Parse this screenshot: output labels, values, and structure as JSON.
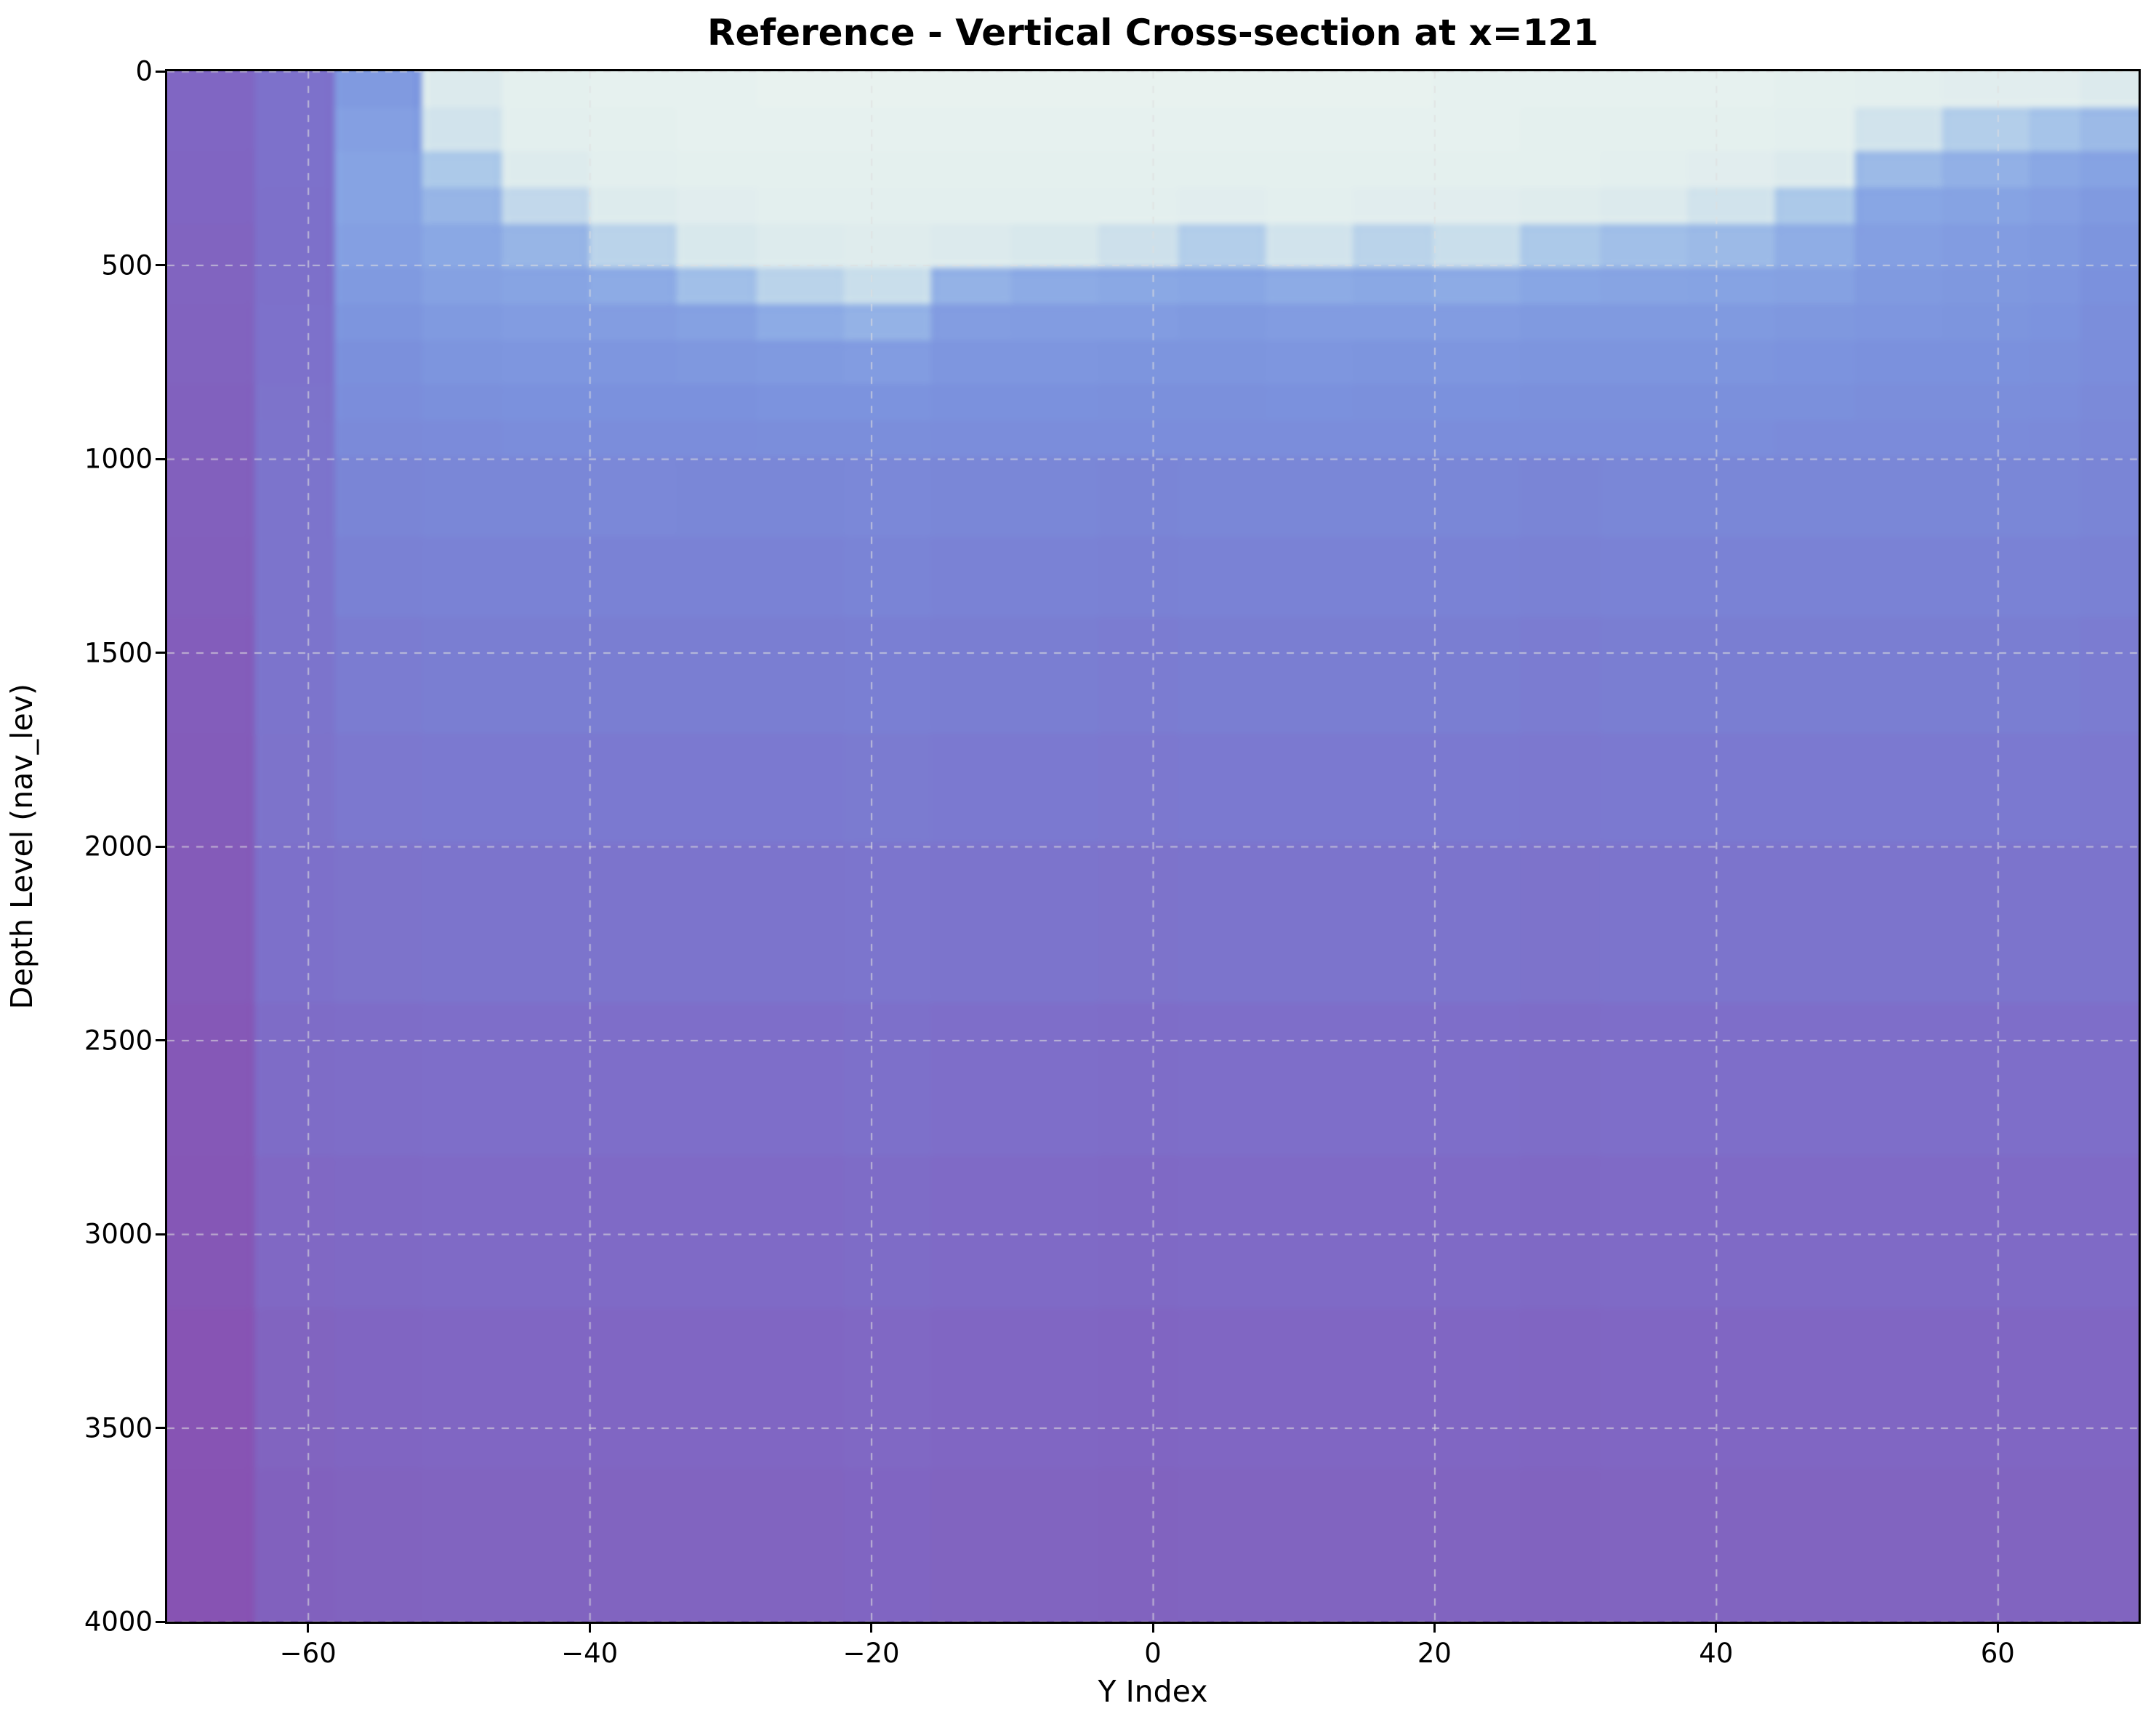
{
  "title": "Reference - Vertical Cross-section at x=121",
  "xlabel": "Y Index",
  "ylabel": "Depth Level (nav_lev)",
  "chart_data": {
    "type": "heatmap",
    "title": "Reference - Vertical Cross-section at x=121",
    "xlabel": "Y Index",
    "ylabel": "Depth Level (nav_lev)",
    "x_range": [
      -70,
      70
    ],
    "y_range": [
      0,
      4000
    ],
    "y_inverted": true,
    "grid": true,
    "grid_style": "dashed",
    "grid_color": "#dedede",
    "x_ticks": [
      -60,
      -40,
      -20,
      0,
      20,
      40,
      60
    ],
    "x_tick_labels": [
      "−60",
      "−40",
      "−20",
      "0",
      "20",
      "40",
      "60"
    ],
    "y_ticks": [
      0,
      500,
      1000,
      1500,
      2000,
      2500,
      3000,
      3500,
      4000
    ],
    "y_tick_labels": [
      "0",
      "500",
      "1000",
      "1500",
      "2000",
      "2500",
      "3000",
      "3500",
      "4000"
    ],
    "colormap": {
      "stops": [
        {
          "t": 0.0,
          "color": "#edf5f0"
        },
        {
          "t": 0.12,
          "color": "#d8e8ec"
        },
        {
          "t": 0.25,
          "color": "#a8c6e9"
        },
        {
          "t": 0.38,
          "color": "#88a6e4"
        },
        {
          "t": 0.5,
          "color": "#7b91dd"
        },
        {
          "t": 0.62,
          "color": "#7a7fd3"
        },
        {
          "t": 0.75,
          "color": "#7e6dc8"
        },
        {
          "t": 0.88,
          "color": "#835cba"
        },
        {
          "t": 1.0,
          "color": "#8a4cae"
        }
      ]
    },
    "x_edges": [
      -70,
      -64,
      -58,
      -52,
      -46,
      -40,
      -34,
      -28,
      -22,
      -16,
      -10,
      -4,
      2,
      8,
      14,
      20,
      26,
      32,
      38,
      44,
      50,
      56,
      62,
      66,
      70
    ],
    "depth_edges": [
      0,
      100,
      200,
      300,
      400,
      500,
      600,
      700,
      800,
      900,
      1000,
      1200,
      1400,
      1700,
      2000,
      2400,
      2800,
      3200,
      3600,
      4000
    ],
    "values": [
      [
        0.8,
        0.72,
        0.45,
        0.1,
        0.05,
        0.04,
        0.04,
        0.03,
        0.03,
        0.03,
        0.03,
        0.03,
        0.03,
        0.03,
        0.03,
        0.04,
        0.04,
        0.04,
        0.04,
        0.05,
        0.06,
        0.07,
        0.07,
        0.1
      ],
      [
        0.8,
        0.72,
        0.42,
        0.14,
        0.06,
        0.05,
        0.04,
        0.04,
        0.04,
        0.04,
        0.04,
        0.04,
        0.04,
        0.04,
        0.04,
        0.04,
        0.05,
        0.05,
        0.05,
        0.06,
        0.14,
        0.22,
        0.26,
        0.3
      ],
      [
        0.81,
        0.72,
        0.4,
        0.24,
        0.09,
        0.06,
        0.05,
        0.05,
        0.05,
        0.05,
        0.05,
        0.05,
        0.05,
        0.05,
        0.05,
        0.05,
        0.05,
        0.06,
        0.07,
        0.1,
        0.3,
        0.34,
        0.37,
        0.4
      ],
      [
        0.81,
        0.73,
        0.4,
        0.32,
        0.18,
        0.09,
        0.07,
        0.06,
        0.06,
        0.06,
        0.06,
        0.06,
        0.07,
        0.06,
        0.07,
        0.07,
        0.08,
        0.1,
        0.14,
        0.24,
        0.38,
        0.4,
        0.42,
        0.45
      ],
      [
        0.82,
        0.73,
        0.42,
        0.37,
        0.32,
        0.2,
        0.12,
        0.09,
        0.08,
        0.1,
        0.12,
        0.15,
        0.22,
        0.14,
        0.2,
        0.16,
        0.24,
        0.28,
        0.3,
        0.35,
        0.42,
        0.44,
        0.45,
        0.48
      ],
      [
        0.82,
        0.73,
        0.45,
        0.41,
        0.39,
        0.36,
        0.28,
        0.2,
        0.16,
        0.33,
        0.36,
        0.37,
        0.38,
        0.36,
        0.37,
        0.36,
        0.38,
        0.39,
        0.4,
        0.41,
        0.45,
        0.46,
        0.47,
        0.5
      ],
      [
        0.83,
        0.72,
        0.48,
        0.45,
        0.44,
        0.43,
        0.41,
        0.36,
        0.33,
        0.43,
        0.44,
        0.44,
        0.45,
        0.44,
        0.44,
        0.44,
        0.45,
        0.45,
        0.45,
        0.46,
        0.47,
        0.48,
        0.49,
        0.52
      ],
      [
        0.83,
        0.72,
        0.51,
        0.48,
        0.47,
        0.47,
        0.46,
        0.45,
        0.44,
        0.47,
        0.47,
        0.48,
        0.48,
        0.47,
        0.48,
        0.47,
        0.48,
        0.48,
        0.48,
        0.49,
        0.5,
        0.5,
        0.51,
        0.53
      ],
      [
        0.84,
        0.71,
        0.53,
        0.51,
        0.5,
        0.5,
        0.5,
        0.49,
        0.49,
        0.5,
        0.5,
        0.51,
        0.51,
        0.5,
        0.51,
        0.5,
        0.51,
        0.51,
        0.51,
        0.51,
        0.52,
        0.52,
        0.53,
        0.55
      ],
      [
        0.84,
        0.7,
        0.55,
        0.54,
        0.53,
        0.53,
        0.53,
        0.52,
        0.52,
        0.53,
        0.53,
        0.53,
        0.53,
        0.53,
        0.53,
        0.53,
        0.53,
        0.53,
        0.53,
        0.54,
        0.54,
        0.54,
        0.55,
        0.56
      ],
      [
        0.85,
        0.7,
        0.58,
        0.57,
        0.57,
        0.56,
        0.57,
        0.57,
        0.56,
        0.57,
        0.57,
        0.58,
        0.57,
        0.57,
        0.57,
        0.57,
        0.58,
        0.57,
        0.57,
        0.57,
        0.57,
        0.57,
        0.57,
        0.58
      ],
      [
        0.86,
        0.7,
        0.61,
        0.6,
        0.6,
        0.6,
        0.6,
        0.6,
        0.59,
        0.6,
        0.6,
        0.61,
        0.6,
        0.6,
        0.6,
        0.6,
        0.61,
        0.6,
        0.6,
        0.6,
        0.6,
        0.6,
        0.6,
        0.61
      ],
      [
        0.87,
        0.7,
        0.64,
        0.63,
        0.63,
        0.63,
        0.63,
        0.63,
        0.62,
        0.63,
        0.63,
        0.64,
        0.63,
        0.63,
        0.63,
        0.63,
        0.64,
        0.63,
        0.63,
        0.63,
        0.63,
        0.63,
        0.63,
        0.64
      ],
      [
        0.88,
        0.71,
        0.67,
        0.66,
        0.66,
        0.66,
        0.66,
        0.66,
        0.65,
        0.66,
        0.66,
        0.67,
        0.66,
        0.66,
        0.66,
        0.66,
        0.67,
        0.66,
        0.66,
        0.66,
        0.66,
        0.66,
        0.66,
        0.67
      ],
      [
        0.89,
        0.73,
        0.71,
        0.7,
        0.7,
        0.7,
        0.7,
        0.7,
        0.69,
        0.7,
        0.7,
        0.71,
        0.7,
        0.7,
        0.7,
        0.7,
        0.71,
        0.7,
        0.7,
        0.7,
        0.7,
        0.7,
        0.7,
        0.7
      ],
      [
        0.91,
        0.76,
        0.75,
        0.74,
        0.74,
        0.74,
        0.74,
        0.74,
        0.73,
        0.74,
        0.74,
        0.75,
        0.74,
        0.74,
        0.74,
        0.74,
        0.75,
        0.74,
        0.74,
        0.74,
        0.74,
        0.74,
        0.74,
        0.74
      ],
      [
        0.92,
        0.79,
        0.78,
        0.77,
        0.77,
        0.77,
        0.77,
        0.77,
        0.76,
        0.77,
        0.77,
        0.78,
        0.77,
        0.77,
        0.77,
        0.77,
        0.78,
        0.77,
        0.77,
        0.77,
        0.77,
        0.77,
        0.77,
        0.77
      ],
      [
        0.94,
        0.82,
        0.81,
        0.8,
        0.8,
        0.8,
        0.8,
        0.8,
        0.79,
        0.8,
        0.8,
        0.81,
        0.8,
        0.8,
        0.8,
        0.8,
        0.81,
        0.8,
        0.8,
        0.8,
        0.8,
        0.8,
        0.8,
        0.8
      ],
      [
        0.95,
        0.84,
        0.83,
        0.82,
        0.82,
        0.82,
        0.82,
        0.82,
        0.81,
        0.82,
        0.82,
        0.83,
        0.82,
        0.82,
        0.82,
        0.82,
        0.83,
        0.82,
        0.82,
        0.82,
        0.82,
        0.82,
        0.82,
        0.82
      ]
    ]
  }
}
